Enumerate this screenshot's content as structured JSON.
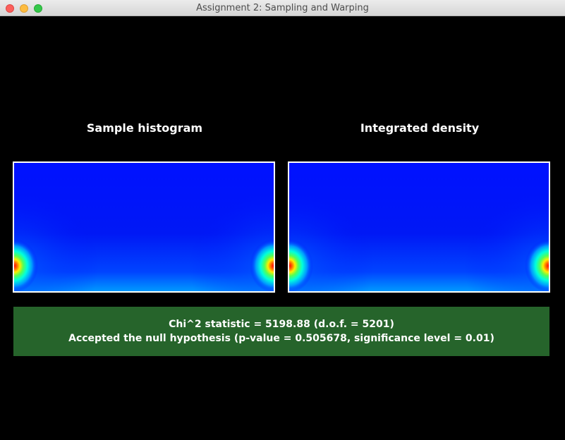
{
  "window": {
    "title": "Assignment 2: Sampling and Warping"
  },
  "panels": [
    {
      "label": "Sample histogram"
    },
    {
      "label": "Integrated density"
    }
  ],
  "result": {
    "line1": "Chi^2 statistic = 5198.88 (d.o.f. = 5201)",
    "line2": "Accepted the null hypothesis (p-value = 0.505678, significance level = 0.01)",
    "accent_color": "#26642b"
  },
  "colors": {
    "background": "#000000",
    "heatmap_low": "#0000ff",
    "heatmap_high": "#ff0000"
  }
}
